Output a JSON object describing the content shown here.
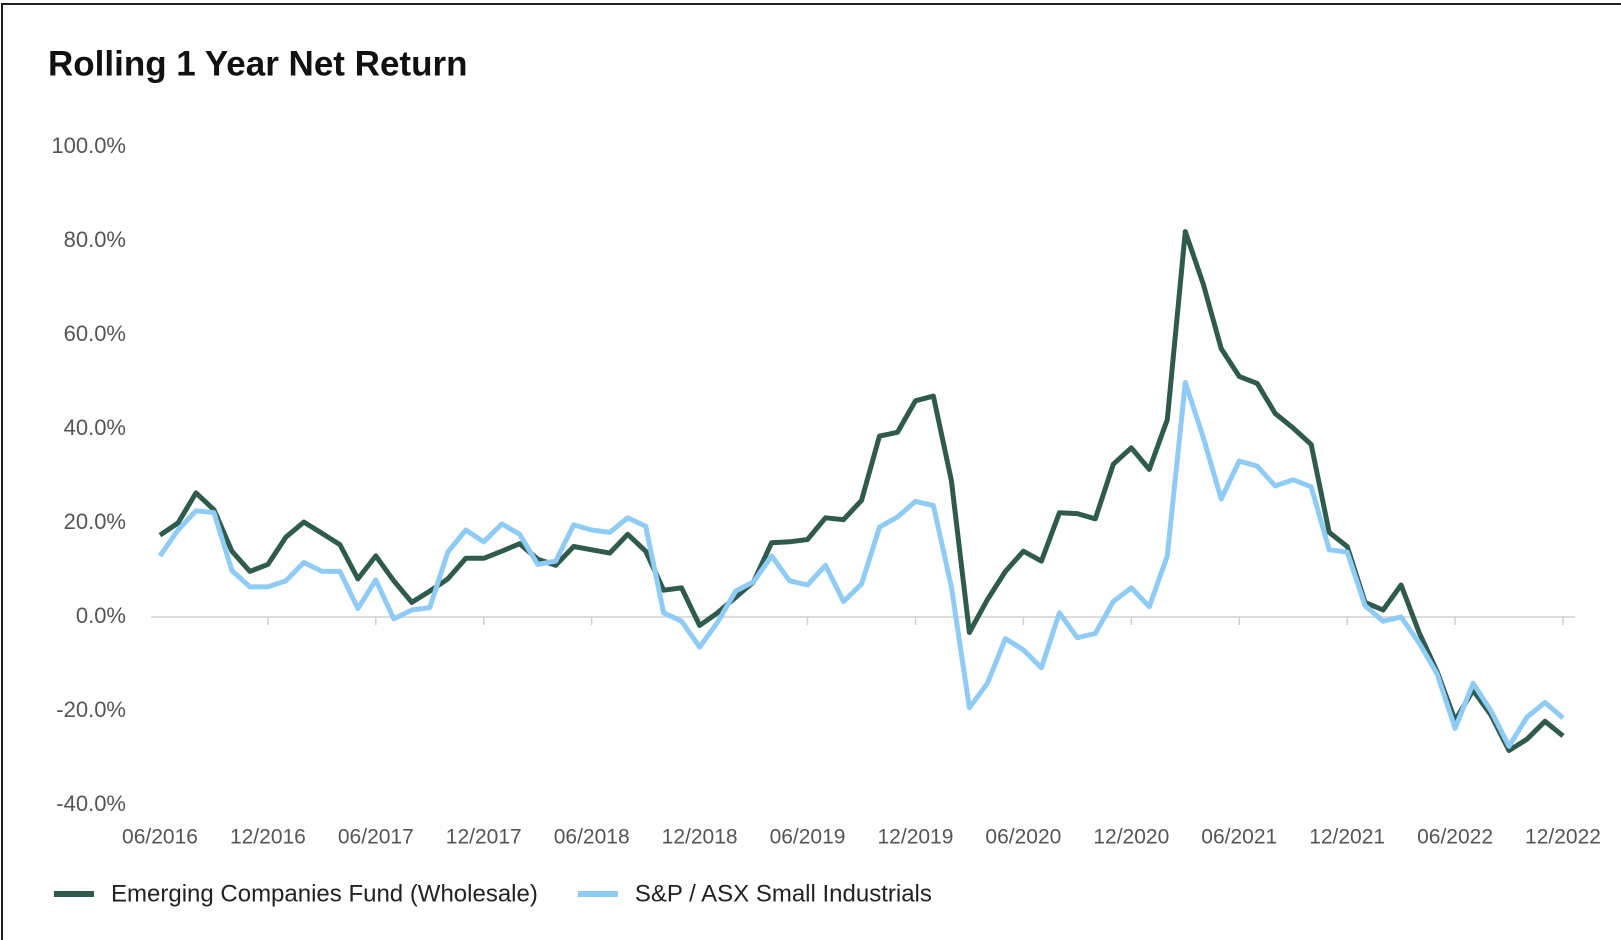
{
  "chart_data": {
    "type": "line",
    "title": "Rolling 1 Year Net Return",
    "categories": [
      "06/2016",
      null,
      null,
      null,
      null,
      null,
      "12/2016",
      null,
      null,
      null,
      null,
      null,
      "06/2017",
      null,
      null,
      null,
      null,
      null,
      "12/2017",
      null,
      null,
      null,
      null,
      null,
      "06/2018",
      null,
      null,
      null,
      null,
      null,
      "12/2018",
      null,
      null,
      null,
      null,
      null,
      "06/2019",
      null,
      null,
      null,
      null,
      null,
      "12/2019",
      null,
      null,
      null,
      null,
      null,
      "06/2020",
      null,
      null,
      null,
      null,
      null,
      "12/2020",
      null,
      null,
      null,
      null,
      null,
      "06/2021",
      null,
      null,
      null,
      null,
      null,
      "12/2021",
      null,
      null,
      null,
      null,
      null,
      "06/2022",
      null,
      null,
      null,
      null,
      null,
      "12/2022"
    ],
    "series": [
      {
        "name": "Emerging Companies Fund (Wholesale)",
        "color": "#2e5b4d",
        "values": [
          17.4,
          20,
          26.4,
          22.8,
          14,
          9.7,
          11.2,
          17,
          20.2,
          17.8,
          15.4,
          8.1,
          13,
          7.7,
          3.1,
          5.5,
          8.1,
          12.5,
          12.5,
          14,
          15.6,
          12.3,
          11,
          15,
          14.3,
          13.6,
          17.6,
          14,
          5.7,
          6.2,
          -1.8,
          0.9,
          4.2,
          7.5,
          15.8,
          16,
          16.5,
          21.1,
          20.7,
          24.8,
          38.5,
          39.3,
          46,
          47,
          29,
          -3.3,
          3.7,
          9.7,
          14,
          11.9,
          22.2,
          22,
          20.9,
          32.5,
          36,
          31.4,
          42,
          82,
          70.8,
          57.1,
          51.2,
          49.7,
          43.3,
          40.2,
          36.7,
          18,
          15,
          3.1,
          1.5,
          6.8,
          -3.3,
          -11.6,
          -22,
          -15.6,
          -20.9,
          -28.4,
          -26,
          -22.2,
          -25.3
        ]
      },
      {
        "name": "S&P / ASX Small Industrials",
        "color": "#8ecbf5",
        "values": [
          13,
          18.5,
          22.6,
          22.2,
          9.9,
          6.4,
          6.4,
          7.7,
          11.6,
          9.7,
          9.7,
          1.8,
          7.9,
          -0.4,
          1.5,
          2,
          13.8,
          18.5,
          16,
          19.8,
          17.6,
          11.2,
          11.9,
          19.6,
          18.5,
          18,
          21.1,
          19.3,
          0.9,
          -0.9,
          -6.4,
          -1.1,
          5.5,
          7.5,
          13,
          7.7,
          6.8,
          11,
          3.3,
          7,
          19.1,
          21.3,
          24.6,
          23.7,
          6.4,
          -19.3,
          -14.1,
          -4.6,
          -7,
          -10.8,
          0.9,
          -4.4,
          -3.5,
          3.3,
          6.2,
          2.2,
          13,
          49.9,
          38.2,
          25.1,
          33.2,
          32.1,
          27.9,
          29.2,
          27.7,
          14.3,
          13.8,
          2.4,
          -0.9,
          0,
          -5.5,
          -12.1,
          -23.7,
          -14.1,
          -20,
          -27.5,
          -21.3,
          -18.2,
          -21.5
        ]
      }
    ],
    "ylim": [
      -40,
      100
    ],
    "yticks": [
      {
        "value": 100,
        "label": "100.0%"
      },
      {
        "value": 80,
        "label": "80.0%"
      },
      {
        "value": 60,
        "label": "60.0%"
      },
      {
        "value": 40,
        "label": "40.0%"
      },
      {
        "value": 20,
        "label": "20.0%"
      },
      {
        "value": 0,
        "label": "0.0%"
      },
      {
        "value": -20,
        "label": "-20.0%"
      },
      {
        "value": -40,
        "label": "-40.0%"
      }
    ]
  }
}
